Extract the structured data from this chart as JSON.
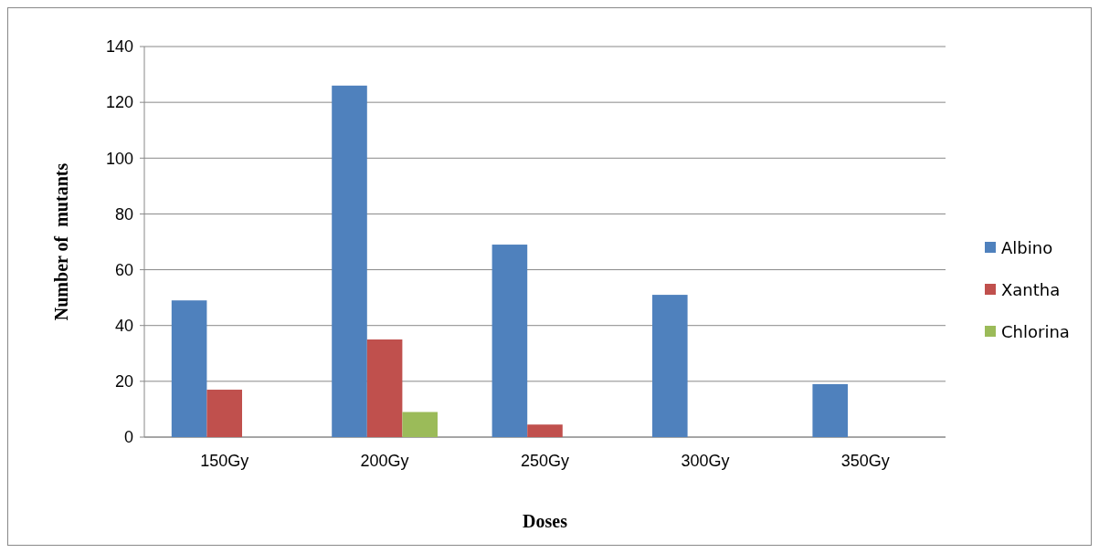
{
  "chart_data": {
    "type": "bar",
    "xlabel": "Doses",
    "ylabel": "Number of  mutants",
    "categories": [
      "150Gy",
      "200Gy",
      "250Gy",
      "300Gy",
      "350Gy"
    ],
    "series": [
      {
        "name": "Albino",
        "color": "#4f81bd",
        "values": [
          49,
          126,
          69,
          51,
          19
        ]
      },
      {
        "name": "Xantha",
        "color": "#c0504d",
        "values": [
          17,
          35,
          4.5,
          0,
          0
        ]
      },
      {
        "name": "Chlorina",
        "color": "#9bbb59",
        "values": [
          0,
          9,
          0,
          0,
          0
        ]
      }
    ],
    "ylim": [
      0,
      140
    ],
    "yticks": [
      0,
      20,
      40,
      60,
      80,
      100,
      120,
      140
    ],
    "grid": "y",
    "legend": "right"
  }
}
